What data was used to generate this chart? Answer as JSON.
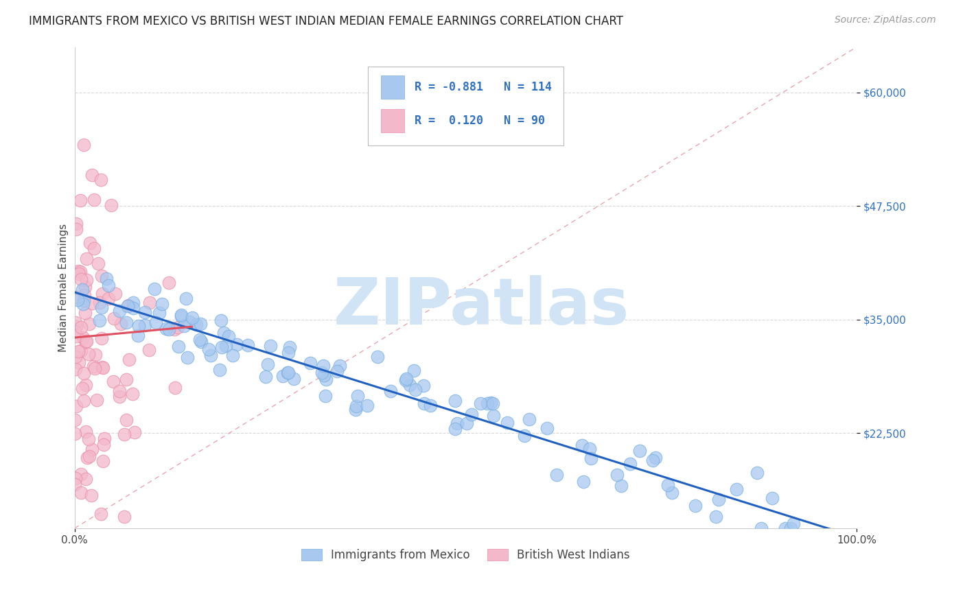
{
  "title": "IMMIGRANTS FROM MEXICO VS BRITISH WEST INDIAN MEDIAN FEMALE EARNINGS CORRELATION CHART",
  "source": "Source: ZipAtlas.com",
  "ylabel": "Median Female Earnings",
  "xlim": [
    0.0,
    1.0
  ],
  "ylim": [
    12000,
    65000
  ],
  "yticks": [
    22500,
    35000,
    47500,
    60000
  ],
  "ytick_labels": [
    "$22,500",
    "$35,000",
    "$47,500",
    "$60,000"
  ],
  "xtick_labels": [
    "0.0%",
    "100.0%"
  ],
  "legend_r_mexico": "-0.881",
  "legend_n_mexico": "114",
  "legend_r_bwi": "0.120",
  "legend_n_bwi": "90",
  "mexico_color": "#a8c8f0",
  "mexico_edge_color": "#7ab0e0",
  "bwi_color": "#f4b8cb",
  "bwi_edge_color": "#e890a8",
  "mexico_line_color": "#2060c0",
  "bwi_line_color": "#e05060",
  "diagonal_color": "#e08090",
  "watermark_color": "#d0e4f5",
  "background_color": "#ffffff",
  "grid_color": "#d8d8d8",
  "title_fontsize": 12,
  "axis_label_fontsize": 11,
  "tick_label_fontsize": 11,
  "legend_fontsize": 12,
  "source_fontsize": 10
}
